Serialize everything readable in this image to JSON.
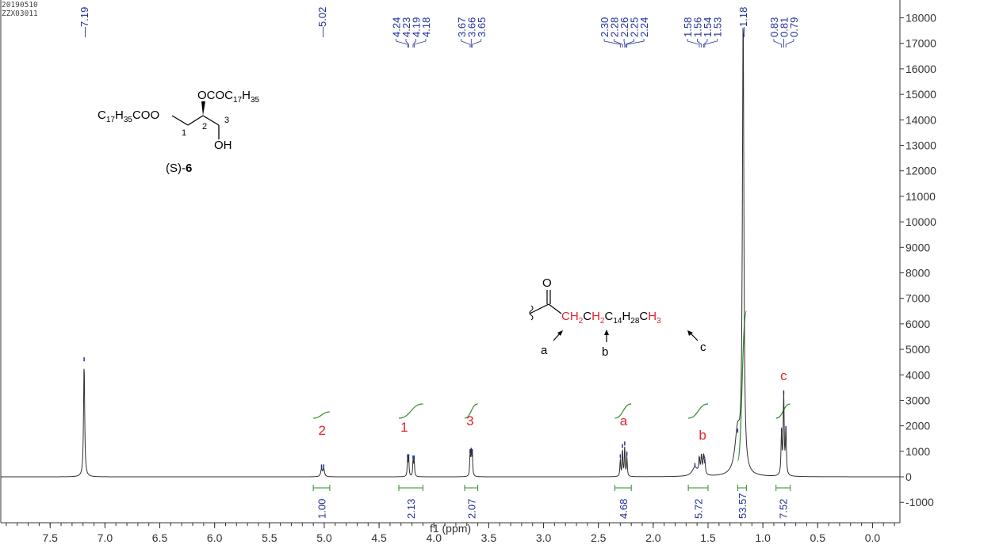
{
  "header": {
    "date_code": "20190510",
    "sample_code": "ZZX03011"
  },
  "colors": {
    "spectrum": "#2f2f2f",
    "peak_label": "#1f2f9a",
    "integral": "#2e8b2e",
    "assignment": "#e8202a",
    "axis": "#333333"
  },
  "chart_data": {
    "type": "line",
    "xlabel": "f1 (ppm)",
    "xlim": [
      7.95,
      -0.25
    ],
    "ylim": [
      -1800,
      18700
    ],
    "x_ticks": [
      "7.5",
      "7.0",
      "6.5",
      "6.0",
      "5.5",
      "5.0",
      "4.5",
      "4.0",
      "3.5",
      "3.0",
      "2.5",
      "2.0",
      "1.5",
      "1.0",
      "0.5",
      "0.0"
    ],
    "x_tick_values": [
      7.5,
      7.0,
      6.5,
      6.0,
      5.5,
      5.0,
      4.5,
      4.0,
      3.5,
      3.0,
      2.5,
      2.0,
      1.5,
      1.0,
      0.5,
      0.0
    ],
    "y_ticks": [
      "18000",
      "17000",
      "16000",
      "15000",
      "14000",
      "13000",
      "12000",
      "11000",
      "10000",
      "9000",
      "8000",
      "7000",
      "6000",
      "5000",
      "4000",
      "3000",
      "2000",
      "1000",
      "0",
      "-1000"
    ],
    "y_tick_values": [
      18000,
      17000,
      16000,
      15000,
      14000,
      13000,
      12000,
      11000,
      10000,
      9000,
      8000,
      7000,
      6000,
      5000,
      4000,
      3000,
      2000,
      1000,
      0,
      -1000
    ],
    "peak_labels": [
      {
        "ppm": 7.19,
        "text": "7.19"
      },
      {
        "ppm": 5.02,
        "text": "5.02"
      },
      {
        "ppm": 4.24,
        "text": "4.24"
      },
      {
        "ppm": 4.23,
        "text": "4.23"
      },
      {
        "ppm": 4.19,
        "text": "4.19"
      },
      {
        "ppm": 4.18,
        "text": "4.18"
      },
      {
        "ppm": 3.67,
        "text": "3.67"
      },
      {
        "ppm": 3.66,
        "text": "3.66"
      },
      {
        "ppm": 3.65,
        "text": "3.65"
      },
      {
        "ppm": 2.3,
        "text": "2.30"
      },
      {
        "ppm": 2.28,
        "text": "2.28"
      },
      {
        "ppm": 2.26,
        "text": "2.26"
      },
      {
        "ppm": 2.25,
        "text": "2.25"
      },
      {
        "ppm": 2.24,
        "text": "2.24"
      },
      {
        "ppm": 1.58,
        "text": "1.58"
      },
      {
        "ppm": 1.56,
        "text": "1.56"
      },
      {
        "ppm": 1.54,
        "text": "1.54"
      },
      {
        "ppm": 1.53,
        "text": "1.53"
      },
      {
        "ppm": 1.18,
        "text": "1.18"
      },
      {
        "ppm": 0.83,
        "text": "0.83"
      },
      {
        "ppm": 0.81,
        "text": "0.81"
      },
      {
        "ppm": 0.79,
        "text": "0.79"
      }
    ],
    "peaks": [
      {
        "ppm": 7.19,
        "height": 4500,
        "width": 0.006
      },
      {
        "ppm": 5.025,
        "height": 300,
        "width": 0.008
      },
      {
        "ppm": 5.005,
        "height": 300,
        "width": 0.008
      },
      {
        "ppm": 4.24,
        "height": 700,
        "width": 0.004
      },
      {
        "ppm": 4.23,
        "height": 700,
        "width": 0.004
      },
      {
        "ppm": 4.19,
        "height": 650,
        "width": 0.004
      },
      {
        "ppm": 4.18,
        "height": 650,
        "width": 0.004
      },
      {
        "ppm": 3.67,
        "height": 900,
        "width": 0.004
      },
      {
        "ppm": 3.66,
        "height": 950,
        "width": 0.004
      },
      {
        "ppm": 3.65,
        "height": 900,
        "width": 0.004
      },
      {
        "ppm": 2.3,
        "height": 700,
        "width": 0.004
      },
      {
        "ppm": 2.28,
        "height": 1100,
        "width": 0.004
      },
      {
        "ppm": 2.26,
        "height": 1200,
        "width": 0.004
      },
      {
        "ppm": 2.24,
        "height": 800,
        "width": 0.004
      },
      {
        "ppm": 1.62,
        "height": 350,
        "width": 0.03
      },
      {
        "ppm": 1.58,
        "height": 600,
        "width": 0.006
      },
      {
        "ppm": 1.56,
        "height": 700,
        "width": 0.006
      },
      {
        "ppm": 1.54,
        "height": 650,
        "width": 0.006
      },
      {
        "ppm": 1.53,
        "height": 500,
        "width": 0.006
      },
      {
        "ppm": 1.18,
        "height": 17800,
        "width": 0.008
      },
      {
        "ppm": 1.23,
        "height": 1700,
        "width": 0.03
      },
      {
        "ppm": 0.83,
        "height": 1700,
        "width": 0.005
      },
      {
        "ppm": 0.81,
        "height": 3200,
        "width": 0.005
      },
      {
        "ppm": 0.79,
        "height": 1800,
        "width": 0.005
      }
    ],
    "integrals": [
      {
        "from": 5.1,
        "to": 4.95,
        "value": "1.00"
      },
      {
        "from": 4.32,
        "to": 4.1,
        "value": "2.13"
      },
      {
        "from": 3.72,
        "to": 3.6,
        "value": "2.07"
      },
      {
        "from": 2.35,
        "to": 2.2,
        "value": "4.68"
      },
      {
        "from": 1.68,
        "to": 1.5,
        "value": "5.72"
      },
      {
        "from": 1.23,
        "to": 1.15,
        "value": "53.57"
      },
      {
        "from": 0.88,
        "to": 0.75,
        "value": "7.52"
      }
    ],
    "assignments": [
      {
        "ppm": 5.02,
        "text": "2"
      },
      {
        "ppm": 4.27,
        "text": "1"
      },
      {
        "ppm": 3.67,
        "text": "3"
      },
      {
        "ppm": 2.27,
        "text": "a"
      },
      {
        "ppm": 1.55,
        "text": "b"
      },
      {
        "ppm": 0.81,
        "text": "c"
      }
    ]
  },
  "molecule": {
    "left_group": "C17H35COO",
    "top_group": "OCOC17H35",
    "hydroxyl": "OH",
    "positions": [
      "1",
      "2",
      "3"
    ],
    "compound_prefix": "(S)-",
    "compound_number": "6"
  },
  "fragment": {
    "oxygen": "O",
    "chain_prefix": "CH2CH2",
    "chain_middle": "C14H28",
    "chain_end": "CH3",
    "labels": [
      "a",
      "b",
      "c"
    ]
  }
}
